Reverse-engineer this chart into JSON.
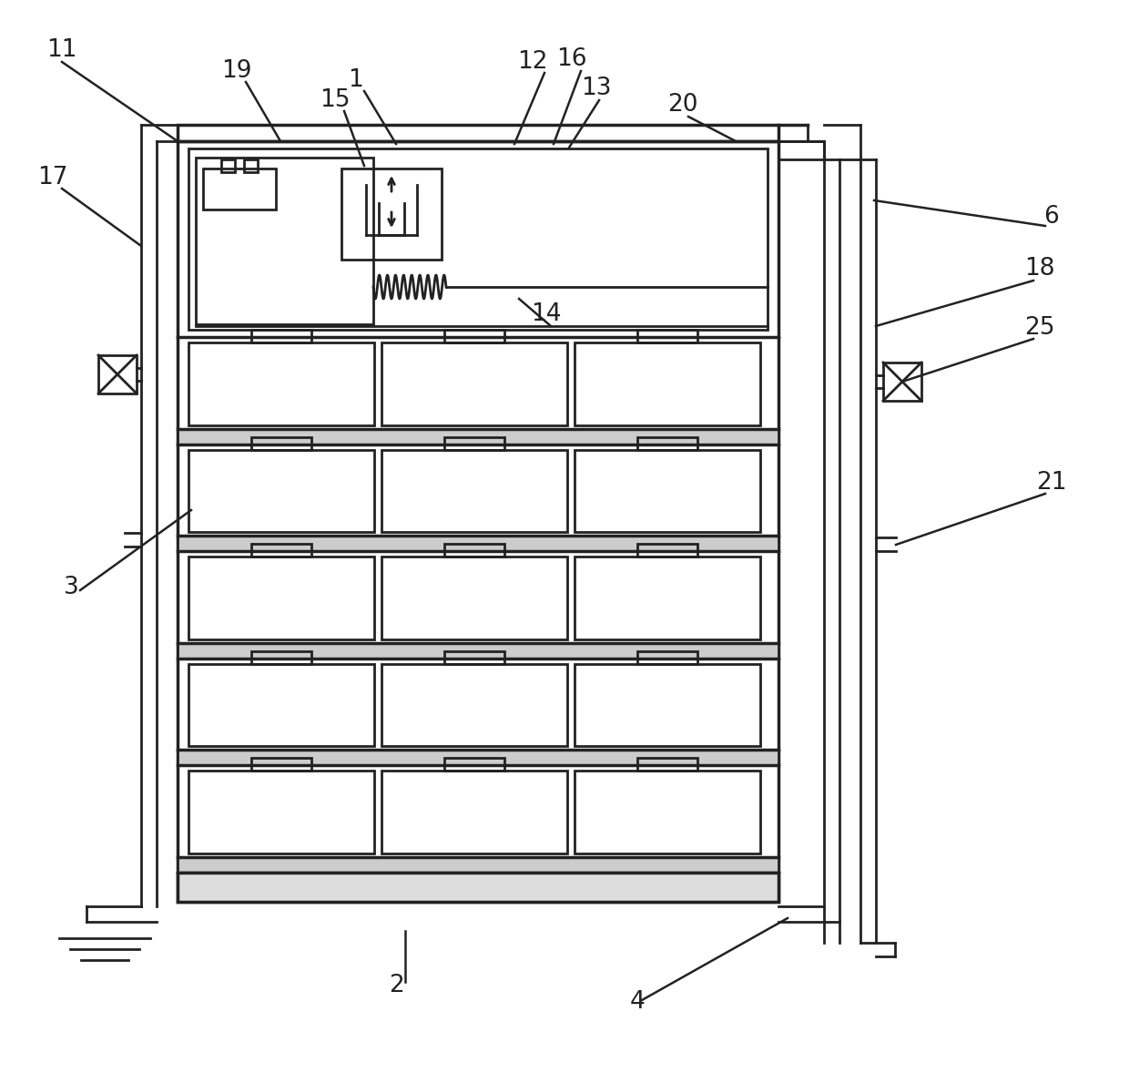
{
  "bg_color": "#ffffff",
  "line_color": "#222222",
  "lw": 2.0,
  "tlw": 2.5,
  "figsize": [
    12.4,
    11.78
  ],
  "dpi": 100,
  "label_fs": 19
}
